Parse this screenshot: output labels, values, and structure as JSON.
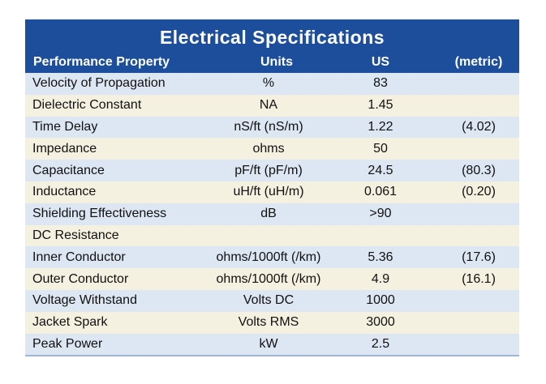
{
  "title": "Electrical Specifications",
  "columns": {
    "property": "Performance Property",
    "units": "Units",
    "us": "US",
    "metric": "(metric)"
  },
  "rows": [
    {
      "property": "Velocity of Propagation",
      "units": "%",
      "us": "83",
      "metric": ""
    },
    {
      "property": "Dielectric Constant",
      "units": "NA",
      "us": "1.45",
      "metric": ""
    },
    {
      "property": "Time Delay",
      "units": "nS/ft (nS/m)",
      "us": "1.22",
      "metric": "(4.02)"
    },
    {
      "property": "Impedance",
      "units": "ohms",
      "us": "50",
      "metric": ""
    },
    {
      "property": "Capacitance",
      "units": "pF/ft (pF/m)",
      "us": "24.5",
      "metric": "(80.3)"
    },
    {
      "property": "Inductance",
      "units": "uH/ft (uH/m)",
      "us": "0.061",
      "metric": "(0.20)"
    },
    {
      "property": "Shielding Effectiveness",
      "units": "dB",
      "us": ">90",
      "metric": ""
    },
    {
      "property": "DC Resistance",
      "units": "",
      "us": "",
      "metric": ""
    },
    {
      "property": "Inner Conductor",
      "units": "ohms/1000ft (/km)",
      "us": "5.36",
      "metric": "(17.6)"
    },
    {
      "property": "Outer Conductor",
      "units": "ohms/1000ft (/km)",
      "us": "4.9",
      "metric": "(16.1)"
    },
    {
      "property": "Voltage Withstand",
      "units": "Volts DC",
      "us": "1000",
      "metric": ""
    },
    {
      "property": "Jacket Spark",
      "units": "Volts RMS",
      "us": "3000",
      "metric": ""
    },
    {
      "property": "Peak Power",
      "units": "kW",
      "us": "2.5",
      "metric": ""
    }
  ],
  "colors": {
    "header_bg": "#1d4e9c",
    "row_blue": "#dde6f3",
    "row_cream": "#f5f1e1"
  }
}
